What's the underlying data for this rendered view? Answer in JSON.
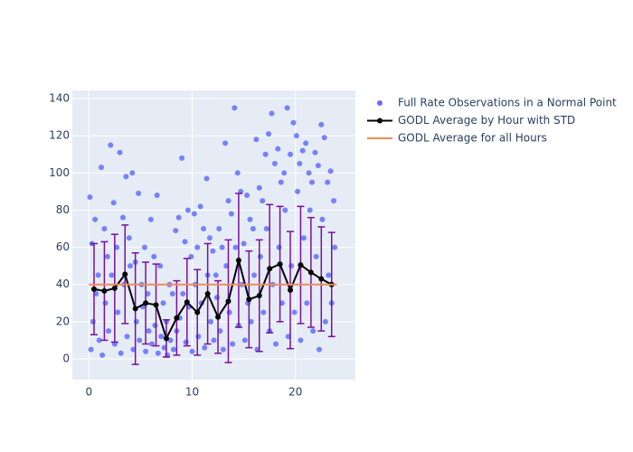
{
  "chart_data": {
    "type": "scatter",
    "xlim": [
      -1.6,
      25.8
    ],
    "ylim": [
      -11.2,
      144.4
    ],
    "xticks": [
      0,
      10,
      20
    ],
    "yticks": [
      0,
      20,
      40,
      60,
      80,
      100,
      120,
      140
    ],
    "grid": true,
    "legend": "right",
    "series": [
      {
        "name": "Full Rate Observations in a Normal Point",
        "color": "#636efa",
        "mode": "markers",
        "x": [
          0.1,
          0.3,
          0.6,
          0.9,
          1.2,
          1.5,
          1.8,
          2.1,
          2.4,
          2.7,
          3.0,
          3.3,
          3.6,
          3.9,
          4.2,
          4.5,
          4.8,
          5.1,
          5.4,
          5.7,
          6.0,
          6.3,
          6.6,
          6.9,
          7.2,
          7.5,
          7.8,
          8.1,
          8.4,
          8.7,
          9.0,
          9.3,
          9.6,
          9.9,
          10.2,
          10.5,
          10.8,
          11.1,
          11.4,
          11.7,
          12.0,
          12.3,
          12.6,
          12.9,
          13.2,
          13.5,
          13.8,
          14.1,
          14.4,
          14.7,
          15.0,
          15.3,
          15.6,
          15.9,
          16.2,
          16.5,
          16.8,
          17.1,
          17.4,
          17.7,
          18.0,
          18.3,
          18.6,
          18.9,
          19.2,
          19.5,
          19.8,
          20.1,
          20.4,
          20.7,
          21.0,
          21.3,
          21.6,
          21.9,
          22.2,
          22.5,
          22.8,
          23.1,
          23.4,
          23.7,
          0.2,
          0.4,
          0.7,
          1.0,
          1.3,
          1.6,
          1.9,
          2.2,
          2.5,
          2.8,
          3.1,
          3.4,
          3.7,
          4.0,
          4.3,
          4.6,
          4.9,
          5.2,
          5.5,
          5.8,
          6.1,
          6.4,
          6.7,
          7.0,
          7.3,
          7.6,
          7.9,
          8.2,
          8.5,
          8.8,
          9.1,
          9.4,
          9.7,
          10.0,
          10.3,
          10.6,
          10.9,
          11.2,
          11.5,
          11.8,
          12.1,
          12.4,
          12.7,
          13.0,
          13.3,
          13.6,
          13.9,
          14.2,
          14.5,
          14.8,
          15.1,
          15.4,
          15.7,
          16.0,
          16.3,
          16.6,
          16.9,
          17.2,
          17.5,
          17.8,
          18.1,
          18.4,
          18.7,
          19.0,
          19.3,
          19.6,
          19.9,
          20.2,
          20.5,
          20.8,
          21.1,
          21.4,
          21.7,
          22.0,
          22.3,
          22.6,
          22.9,
          23.2,
          23.5,
          23.8
        ],
        "values": [
          87,
          62,
          75,
          45,
          103,
          70,
          55,
          115,
          84,
          60,
          111,
          76,
          98,
          65,
          100,
          52,
          89,
          40,
          60,
          35,
          75,
          55,
          88,
          50,
          30,
          20,
          40,
          35,
          69,
          76,
          108,
          63,
          80,
          55,
          78,
          60,
          82,
          70,
          97,
          65,
          58,
          45,
          70,
          60,
          116,
          85,
          78,
          135,
          100,
          90,
          62,
          88,
          75,
          70,
          118,
          92,
          85,
          110,
          121,
          132,
          105,
          113,
          95,
          100,
          135,
          110,
          127,
          120,
          105,
          112,
          116,
          100,
          95,
          111,
          104,
          126,
          119,
          95,
          101,
          85,
          5,
          20,
          35,
          10,
          2,
          30,
          15,
          45,
          8,
          25,
          3,
          40,
          12,
          50,
          5,
          20,
          10,
          28,
          4,
          15,
          8,
          18,
          3,
          12,
          6,
          2,
          10,
          5,
          15,
          22,
          35,
          9,
          28,
          4,
          40,
          12,
          30,
          6,
          45,
          20,
          10,
          33,
          15,
          5,
          50,
          25,
          8,
          60,
          18,
          40,
          10,
          30,
          20,
          45,
          5,
          55,
          25,
          70,
          15,
          40,
          8,
          60,
          30,
          80,
          12,
          50,
          25,
          90,
          10,
          65,
          30,
          80,
          15,
          55,
          5,
          75,
          20,
          45,
          30,
          60
        ]
      },
      {
        "name": "GODL Average by Hour with STD",
        "color": "#000000",
        "error_color": "#7b0f9e",
        "mode": "lines+markers",
        "x": [
          0.5,
          1.5,
          2.5,
          3.5,
          4.5,
          5.5,
          6.5,
          7.5,
          8.5,
          9.5,
          10.5,
          11.5,
          12.5,
          13.5,
          14.5,
          15.5,
          16.5,
          17.5,
          18.5,
          19.5,
          20.5,
          21.5,
          22.5,
          23.5
        ],
        "values": [
          37.5,
          36.5,
          38,
          45.5,
          27,
          30,
          29,
          11,
          22,
          30.5,
          25,
          35,
          22.5,
          31,
          53,
          32,
          34,
          48.5,
          51,
          37,
          50.5,
          46.5,
          43,
          40
        ],
        "errors": [
          24.5,
          26.5,
          29,
          26.5,
          30,
          22,
          22,
          10,
          20,
          23.5,
          23,
          27,
          19.5,
          33,
          36,
          26,
          30,
          34.5,
          31,
          31.5,
          31.5,
          29.5,
          28,
          28
        ]
      },
      {
        "name": "GODL Average for all Hours",
        "color": "#ef8c5a",
        "mode": "lines",
        "x": [
          0,
          24
        ],
        "values": [
          40,
          40
        ]
      }
    ]
  }
}
